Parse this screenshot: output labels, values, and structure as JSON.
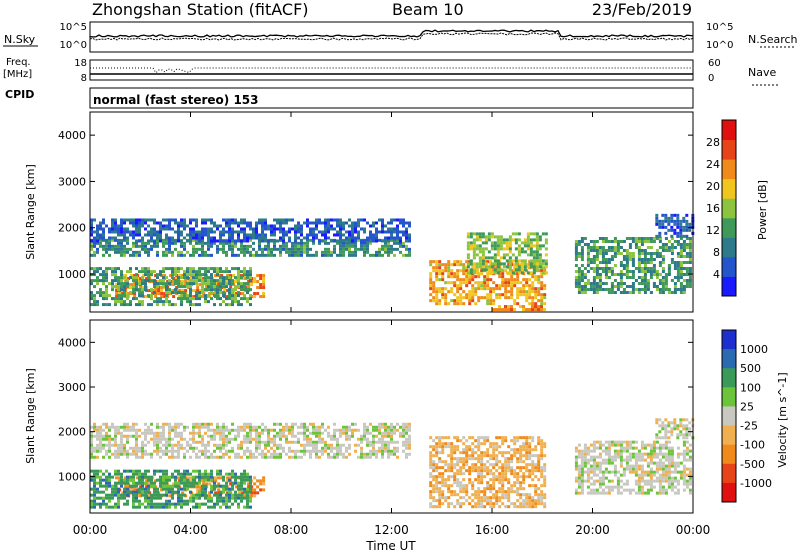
{
  "header": {
    "station": "Zhongshan Station (fitACF)",
    "beam": "Beam 10",
    "date": "23/Feb/2019"
  },
  "noise_panel": {
    "left_label": "N.Sky",
    "right_label": "N.Search",
    "left_ticks": [
      "10^5",
      "10^0"
    ],
    "right_ticks": [
      "10^5",
      "10^0"
    ]
  },
  "freq_panel": {
    "left_label_top": "Freq.",
    "left_label_bottom": "[MHz]",
    "left_ticks": [
      "18",
      "8"
    ],
    "right_label": "Nave",
    "right_ticks": [
      "60",
      "0"
    ]
  },
  "cpid": {
    "label": "CPID",
    "text": "normal (fast stereo) 153"
  },
  "chart_data": [
    {
      "type": "heatmap",
      "name": "power",
      "xlabel": "Time UT",
      "ylabel": "Slant Range [km]",
      "x_ticks": [
        "00:00",
        "04:00",
        "08:00",
        "12:00",
        "16:00",
        "20:00",
        "00:00"
      ],
      "xlim_hours": [
        0,
        24
      ],
      "ylim": [
        180,
        4500
      ],
      "y_ticks": [
        1000,
        2000,
        3000,
        4000
      ],
      "colorbar": {
        "label": "Power [dB]",
        "ticks": [
          4,
          8,
          12,
          16,
          20,
          24,
          28
        ],
        "range": [
          0,
          32
        ],
        "colors": [
          "#1a1aff",
          "#2455cc",
          "#2d7a8a",
          "#3f9a5a",
          "#8cc43f",
          "#f0c51e",
          "#f08a1a",
          "#e8441a",
          "#e01010"
        ]
      },
      "regions": [
        {
          "t": [
            0.0,
            12.8
          ],
          "r": [
            1380,
            1760
          ],
          "value": 10
        },
        {
          "t": [
            0.0,
            12.8
          ],
          "r": [
            1700,
            2200
          ],
          "value": 5
        },
        {
          "t": [
            1.0,
            7.0
          ],
          "r": [
            500,
            1000
          ],
          "value": 24
        },
        {
          "t": [
            0.0,
            6.5
          ],
          "r": [
            280,
            1150
          ],
          "value": 12
        },
        {
          "t": [
            13.5,
            18.2
          ],
          "r": [
            300,
            1300
          ],
          "value": 22
        },
        {
          "t": [
            15.0,
            18.2
          ],
          "r": [
            1000,
            1900
          ],
          "value": 15
        },
        {
          "t": [
            19.3,
            24.0
          ],
          "r": [
            600,
            1800
          ],
          "value": 11
        },
        {
          "t": [
            22.5,
            24.0
          ],
          "r": [
            1800,
            2300
          ],
          "value": 5
        },
        {
          "t": [
            16.0,
            18.2
          ],
          "r": [
            180,
            330
          ],
          "value": 24
        }
      ]
    },
    {
      "type": "heatmap",
      "name": "velocity",
      "xlabel": "Time UT",
      "ylabel": "Slant Range [km]",
      "x_ticks": [
        "00:00",
        "04:00",
        "08:00",
        "12:00",
        "16:00",
        "20:00",
        "00:00"
      ],
      "xlim_hours": [
        0,
        24
      ],
      "ylim": [
        180,
        4500
      ],
      "y_ticks": [
        1000,
        2000,
        3000,
        4000
      ],
      "colorbar": {
        "label": "Velocity [m s^-1]",
        "ticks": [
          "1000",
          "500",
          "100",
          "25",
          "-25",
          "-100",
          "-500",
          "-1000"
        ],
        "colors": [
          "#1e2fd0",
          "#2a6ab0",
          "#3a9a58",
          "#6cc43a",
          "#c8c8c0",
          "#f0b050",
          "#f08a1a",
          "#e8441a",
          "#e01010"
        ]
      },
      "regions": [
        {
          "t": [
            0.0,
            12.8
          ],
          "r": [
            1380,
            2200
          ],
          "value": 0
        },
        {
          "t": [
            1.0,
            7.0
          ],
          "r": [
            500,
            1000
          ],
          "value": -300
        },
        {
          "t": [
            0.0,
            6.5
          ],
          "r": [
            280,
            1150
          ],
          "value": 60
        },
        {
          "t": [
            13.5,
            18.2
          ],
          "r": [
            300,
            1900
          ],
          "value": -200
        },
        {
          "t": [
            19.3,
            24.0
          ],
          "r": [
            600,
            1800
          ],
          "value": -50
        },
        {
          "t": [
            22.5,
            24.0
          ],
          "r": [
            1800,
            2300
          ],
          "value": 0
        }
      ]
    }
  ]
}
